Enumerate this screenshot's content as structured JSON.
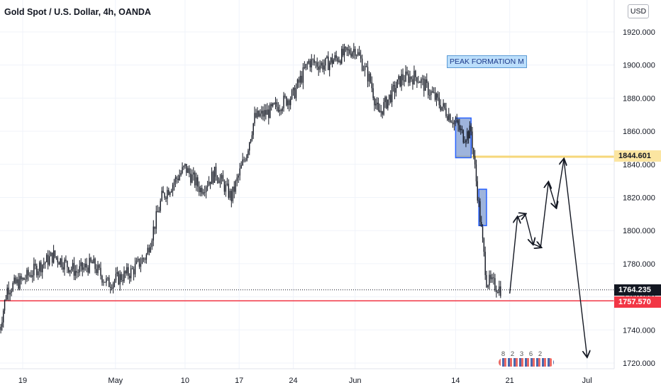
{
  "header": {
    "title": "Gold Spot / U.S. Dollar, 4h, OANDA",
    "currency": "USD"
  },
  "annotations": {
    "peak_label": "PEAK FORMATION M"
  },
  "price_labels": {
    "resistance": "1844.601",
    "last": "1764.235",
    "support": "1757.570"
  },
  "events": [
    "8",
    "2",
    "3",
    "6",
    "2"
  ],
  "colors": {
    "candle": "#131722",
    "grid": "#f0f3fa",
    "resistance": "#f6d77a",
    "support": "#f23645",
    "zone_fill": "#7e9bd0",
    "zone_border": "#2962ff",
    "axis_text": "#131722"
  },
  "chart_data": {
    "type": "candlestick",
    "title": "Gold Spot / U.S. Dollar, 4h, OANDA",
    "ylabel": "USD",
    "ylim": [
      1715,
      1930
    ],
    "y_ticks": [
      "1920.000",
      "1900.000",
      "1880.000",
      "1860.000",
      "1840.000",
      "1820.000",
      "1800.000",
      "1780.000",
      "1760.000",
      "1740.000",
      "1720.000"
    ],
    "x_ticks": [
      "19",
      "May",
      "10",
      "17",
      "24",
      "Jun",
      "14",
      "21",
      "Jul"
    ],
    "price_path": [
      {
        "x": "Apr 16",
        "y": 1740
      },
      {
        "x": "Apr 17",
        "y": 1765
      },
      {
        "x": "Apr 19",
        "y": 1770
      },
      {
        "x": "Apr 21",
        "y": 1778
      },
      {
        "x": "Apr 23",
        "y": 1785
      },
      {
        "x": "Apr 26",
        "y": 1775
      },
      {
        "x": "Apr 28",
        "y": 1780
      },
      {
        "x": "Apr 30",
        "y": 1768
      },
      {
        "x": "May 3",
        "y": 1775
      },
      {
        "x": "May 5",
        "y": 1785
      },
      {
        "x": "May 7",
        "y": 1820
      },
      {
        "x": "May 10",
        "y": 1838
      },
      {
        "x": "May 12",
        "y": 1825
      },
      {
        "x": "May 14",
        "y": 1835
      },
      {
        "x": "May 16",
        "y": 1820
      },
      {
        "x": "May 18",
        "y": 1848
      },
      {
        "x": "May 19",
        "y": 1868
      },
      {
        "x": "May 21",
        "y": 1872
      },
      {
        "x": "May 24",
        "y": 1882
      },
      {
        "x": "May 26",
        "y": 1902
      },
      {
        "x": "May 28",
        "y": 1900
      },
      {
        "x": "Jun 1",
        "y": 1910
      },
      {
        "x": "Jun 3",
        "y": 1890
      },
      {
        "x": "Jun 4",
        "y": 1870
      },
      {
        "x": "Jun 7",
        "y": 1892
      },
      {
        "x": "Jun 9",
        "y": 1893
      },
      {
        "x": "Jun 11",
        "y": 1882
      },
      {
        "x": "Jun 14",
        "y": 1865
      },
      {
        "x": "Jun 15",
        "y": 1857
      },
      {
        "x": "Jun 16",
        "y": 1860
      },
      {
        "x": "Jun 17",
        "y": 1815
      },
      {
        "x": "Jun 18",
        "y": 1770
      },
      {
        "x": "Jun 20",
        "y": 1764.235
      }
    ],
    "horizontal_levels": [
      {
        "value": 1844.601,
        "label": "1844.601"
      },
      {
        "value": 1764.235,
        "label": "1764.235"
      },
      {
        "value": 1757.57,
        "label": "1757.570"
      }
    ],
    "zones": [
      {
        "x_start": "Jun 14",
        "x_end": "Jun 16",
        "y_low": 1844,
        "y_high": 1868
      },
      {
        "x_start": "Jun 17",
        "x_end": "Jun 18",
        "y_low": 1803,
        "y_high": 1825
      }
    ],
    "projection_path": [
      {
        "x": "Jun 21",
        "y": 1762
      },
      {
        "x": "Jun 22",
        "y": 1808
      },
      {
        "x": "Jun 23",
        "y": 1810
      },
      {
        "x": "Jun 24",
        "y": 1792
      },
      {
        "x": "Jun 25",
        "y": 1790
      },
      {
        "x": "Jun 26",
        "y": 1829
      },
      {
        "x": "Jun 27",
        "y": 1814
      },
      {
        "x": "Jun 28",
        "y": 1843
      },
      {
        "x": "Jul 1",
        "y": 1724
      }
    ],
    "grid": true,
    "legend": "none"
  }
}
